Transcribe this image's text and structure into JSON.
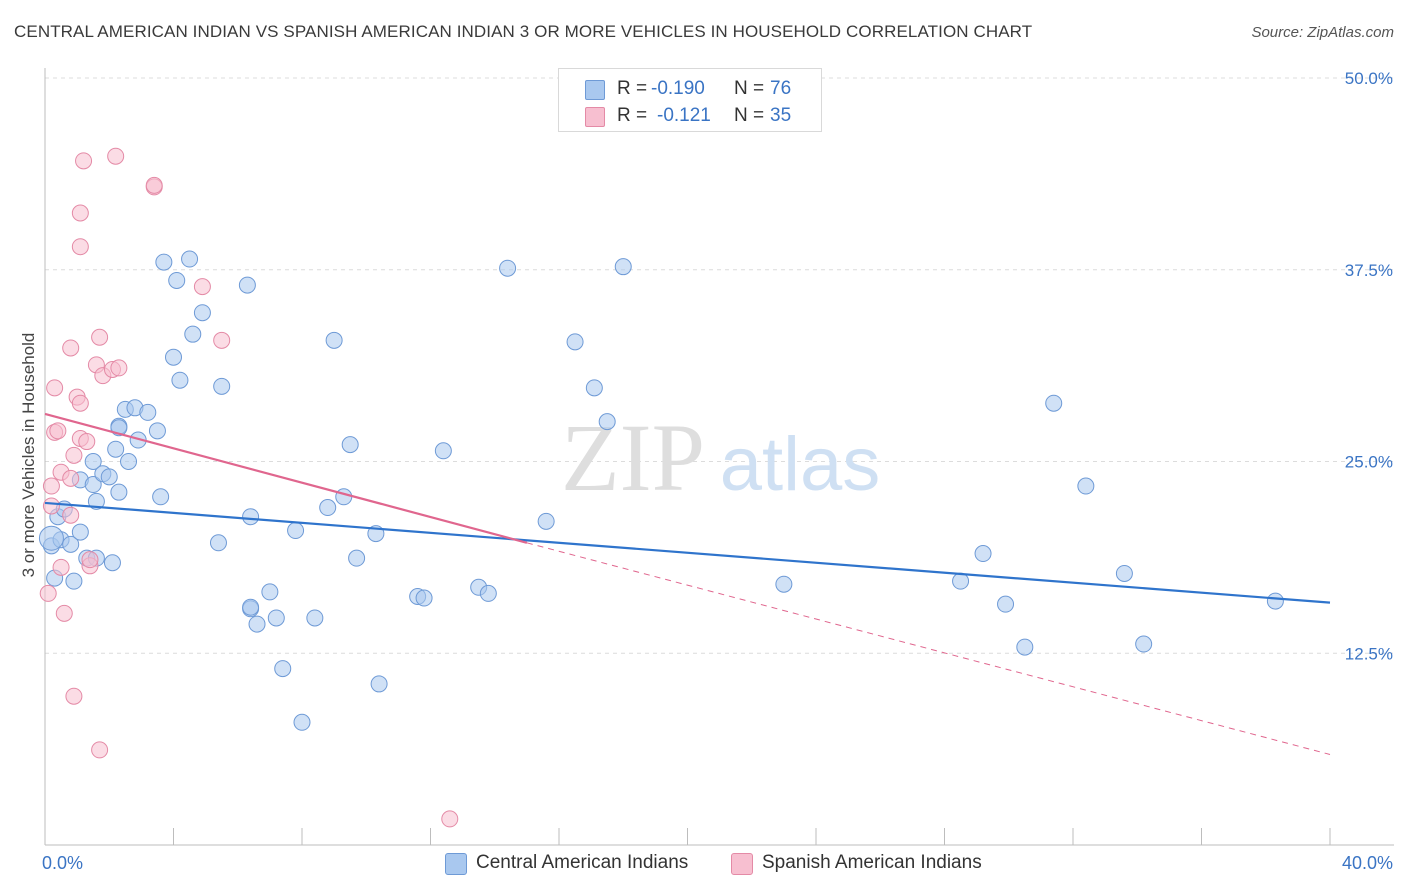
{
  "header": {
    "title": "CENTRAL AMERICAN INDIAN VS SPANISH AMERICAN INDIAN 3 OR MORE VEHICLES IN HOUSEHOLD CORRELATION CHART",
    "source": "Source: ZipAtlas.com"
  },
  "legend": {
    "series": [
      {
        "name": "Central American Indians",
        "r_label": "R =",
        "r_value": "-0.190",
        "n_label": "N =",
        "n_value": "76",
        "color": "#a9c8ef",
        "edge": "#6e9ad6",
        "line": "#2f74cc"
      },
      {
        "name": "Spanish American Indians",
        "r_label": "R =",
        "r_value": "-0.121",
        "n_label": "N =",
        "n_value": "35",
        "color": "#f7bfd0",
        "edge": "#e48aa6",
        "line": "#e0668e"
      }
    ]
  },
  "watermark": {
    "zip": "ZIP",
    "atlas": "atlas"
  },
  "chart_data": {
    "type": "scatter",
    "title": "CENTRAL AMERICAN INDIAN VS SPANISH AMERICAN INDIAN 3 OR MORE VEHICLES IN HOUSEHOLD CORRELATION CHART",
    "xlabel": "",
    "ylabel": "3 or more Vehicles in Household",
    "xlim": [
      0,
      40
    ],
    "ylim": [
      0,
      50
    ],
    "x_tick_labels": [
      "0.0%",
      "40.0%"
    ],
    "y_ticks": [
      12.5,
      25.0,
      37.5,
      50.0
    ],
    "y_tick_labels": [
      "12.5%",
      "25.0%",
      "37.5%",
      "50.0%"
    ],
    "grid": true,
    "series": [
      {
        "name": "Central American Indians",
        "trend": {
          "x": [
            0,
            40
          ],
          "y": [
            22.3,
            15.8
          ],
          "style": "solid"
        },
        "points": [
          [
            0.2,
            19.5
          ],
          [
            0.3,
            17.4
          ],
          [
            0.4,
            21.4
          ],
          [
            0.5,
            19.9
          ],
          [
            0.6,
            21.9
          ],
          [
            0.8,
            19.6
          ],
          [
            0.9,
            17.2
          ],
          [
            1.1,
            20.4
          ],
          [
            1.1,
            23.8
          ],
          [
            1.3,
            18.7
          ],
          [
            1.5,
            23.5
          ],
          [
            1.5,
            25.0
          ],
          [
            1.6,
            18.7
          ],
          [
            1.6,
            22.4
          ],
          [
            1.8,
            24.2
          ],
          [
            2.0,
            24.0
          ],
          [
            2.1,
            18.4
          ],
          [
            2.2,
            25.8
          ],
          [
            2.3,
            27.3
          ],
          [
            2.3,
            23.0
          ],
          [
            2.3,
            27.2
          ],
          [
            2.5,
            28.4
          ],
          [
            2.6,
            25.0
          ],
          [
            2.8,
            28.5
          ],
          [
            2.9,
            26.4
          ],
          [
            3.2,
            28.2
          ],
          [
            3.5,
            27.0
          ],
          [
            3.6,
            22.7
          ],
          [
            3.7,
            38.0
          ],
          [
            4.0,
            31.8
          ],
          [
            4.1,
            36.8
          ],
          [
            4.2,
            30.3
          ],
          [
            4.5,
            38.2
          ],
          [
            4.6,
            33.3
          ],
          [
            4.9,
            34.7
          ],
          [
            5.4,
            19.7
          ],
          [
            5.5,
            29.9
          ],
          [
            6.3,
            36.5
          ],
          [
            6.4,
            21.4
          ],
          [
            6.4,
            15.4
          ],
          [
            6.4,
            15.5
          ],
          [
            6.6,
            14.4
          ],
          [
            7.0,
            16.5
          ],
          [
            7.2,
            14.8
          ],
          [
            7.4,
            11.5
          ],
          [
            7.8,
            20.5
          ],
          [
            8.0,
            8.0
          ],
          [
            8.4,
            14.8
          ],
          [
            8.8,
            22.0
          ],
          [
            9.0,
            32.9
          ],
          [
            9.3,
            22.7
          ],
          [
            9.5,
            26.1
          ],
          [
            9.7,
            18.7
          ],
          [
            10.3,
            20.3
          ],
          [
            10.4,
            10.5
          ],
          [
            11.6,
            16.2
          ],
          [
            11.8,
            16.1
          ],
          [
            12.4,
            25.7
          ],
          [
            13.5,
            16.8
          ],
          [
            13.8,
            16.4
          ],
          [
            14.4,
            37.6
          ],
          [
            15.6,
            21.1
          ],
          [
            16.5,
            32.8
          ],
          [
            17.1,
            29.8
          ],
          [
            17.5,
            27.6
          ],
          [
            18.0,
            37.7
          ],
          [
            23.0,
            17.0
          ],
          [
            28.5,
            17.2
          ],
          [
            29.2,
            19.0
          ],
          [
            29.9,
            15.7
          ],
          [
            30.5,
            12.9
          ],
          [
            31.4,
            28.8
          ],
          [
            32.4,
            23.4
          ],
          [
            33.6,
            17.7
          ],
          [
            34.2,
            13.1
          ],
          [
            38.3,
            15.9
          ]
        ]
      },
      {
        "name": "Spanish American Indians",
        "trend": {
          "x": [
            0,
            15.0
          ],
          "y": [
            28.1,
            19.7
          ],
          "style": "solid",
          "ext_x": [
            15.0,
            40
          ],
          "ext_y": [
            19.7,
            5.9
          ],
          "ext_style": "dashed"
        },
        "points": [
          [
            0.1,
            16.4
          ],
          [
            0.2,
            22.1
          ],
          [
            0.2,
            23.4
          ],
          [
            0.3,
            29.8
          ],
          [
            0.3,
            26.9
          ],
          [
            0.4,
            27.0
          ],
          [
            0.5,
            18.1
          ],
          [
            0.5,
            24.3
          ],
          [
            0.6,
            15.1
          ],
          [
            0.8,
            23.9
          ],
          [
            0.8,
            21.5
          ],
          [
            0.8,
            32.4
          ],
          [
            0.9,
            9.7
          ],
          [
            0.9,
            25.4
          ],
          [
            1.0,
            29.2
          ],
          [
            1.1,
            41.2
          ],
          [
            1.1,
            26.5
          ],
          [
            1.1,
            39.0
          ],
          [
            1.1,
            28.8
          ],
          [
            1.2,
            44.6
          ],
          [
            1.3,
            26.3
          ],
          [
            1.4,
            18.2
          ],
          [
            1.4,
            18.6
          ],
          [
            1.6,
            31.3
          ],
          [
            1.7,
            33.1
          ],
          [
            1.7,
            6.2
          ],
          [
            1.8,
            30.6
          ],
          [
            2.1,
            31.0
          ],
          [
            2.2,
            44.9
          ],
          [
            2.3,
            31.1
          ],
          [
            3.4,
            42.9
          ],
          [
            3.4,
            43.0
          ],
          [
            4.9,
            36.4
          ],
          [
            5.5,
            32.9
          ],
          [
            12.6,
            1.7
          ]
        ]
      }
    ]
  }
}
